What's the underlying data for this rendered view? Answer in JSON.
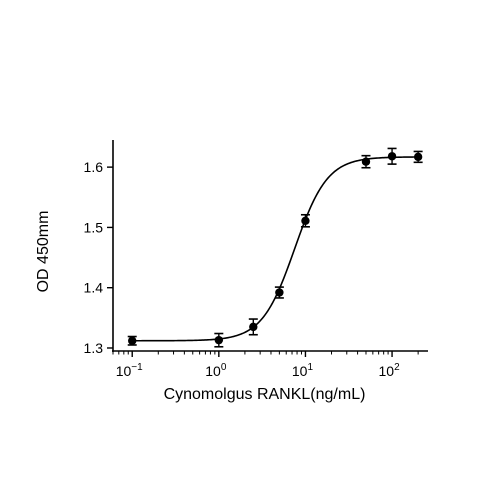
{
  "chart_data": {
    "type": "scatter",
    "title": "",
    "xlabel": "Cynomolgus RANKL(ng/mL)",
    "ylabel": "OD 450mm",
    "x_scale": "log",
    "xlim": [
      0.06,
      260
    ],
    "ylim": [
      1.295,
      1.645
    ],
    "x_ticks": [
      {
        "value": 0.1,
        "base": "10",
        "exp": "−1"
      },
      {
        "value": 1,
        "base": "10",
        "exp": "0"
      },
      {
        "value": 10,
        "base": "10",
        "exp": "1"
      },
      {
        "value": 100,
        "base": "10",
        "exp": "2"
      }
    ],
    "y_ticks": [
      {
        "value": 1.3,
        "label": "1.3"
      },
      {
        "value": 1.4,
        "label": "1.4"
      },
      {
        "value": 1.5,
        "label": "1.5"
      },
      {
        "value": 1.6,
        "label": "1.6"
      }
    ],
    "grid": false,
    "legend": "none",
    "series": [
      {
        "x": [
          0.1,
          1,
          2.5,
          5,
          10,
          50,
          100,
          200
        ],
        "y": [
          1.312,
          1.313,
          1.335,
          1.392,
          1.511,
          1.609,
          1.618,
          1.617
        ],
        "yerr": [
          0.007,
          0.011,
          0.013,
          0.009,
          0.01,
          0.01,
          0.013,
          0.009
        ]
      }
    ],
    "fit_curve": {
      "model": "4PL",
      "bottom": 1.312,
      "top": 1.617,
      "ec50": 7.5,
      "hill": 2.3
    },
    "colors": {
      "marker": "#000000",
      "line": "#000000",
      "axis": "#000000"
    }
  }
}
